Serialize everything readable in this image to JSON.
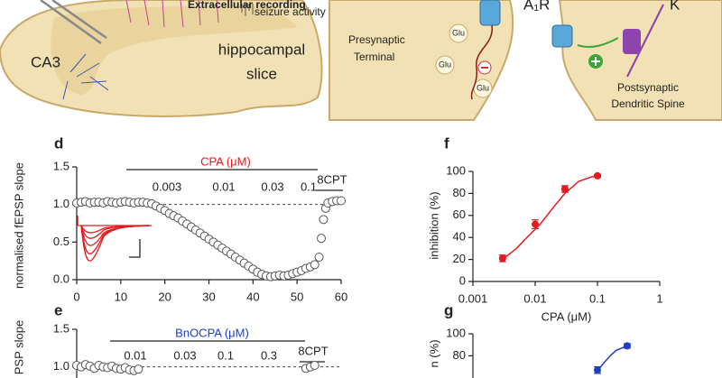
{
  "illustrations": {
    "left": {
      "region": "CA3",
      "slice": [
        "hippocampal",
        "slice"
      ],
      "recording": "Extracellular recording",
      "activity": "seizure activity"
    },
    "right": {
      "pre": [
        "Presynaptic",
        "Terminal"
      ],
      "post": [
        "Postsynaptic",
        "Dendritic Spine"
      ],
      "receptor": "A₁R",
      "ion": "K",
      "glu": [
        "Glu",
        "Glu",
        "Glu"
      ]
    }
  },
  "chart_data": [
    {
      "type": "scatter",
      "panel": "d",
      "ylabel": "normalised fEPSP slope",
      "color": "#e41a1c",
      "marker_color": "#555",
      "xlim": [
        0,
        60
      ],
      "xticks": [
        0,
        10,
        20,
        30,
        40,
        50,
        60
      ],
      "ylim": [
        0,
        1.5
      ],
      "yticks": [
        {
          "value": 0,
          "label": "0.0"
        },
        0.5,
        {
          "value": 1,
          "label": "1.0"
        },
        1.5
      ],
      "reference": 1,
      "annotation": {
        "label": "CPA (μM)",
        "doses": [
          "0.003",
          "0.01",
          "0.03",
          "0.1"
        ],
        "washout": "8CPT"
      },
      "x": [
        0,
        1,
        2,
        3,
        4,
        5,
        6,
        7,
        8,
        9,
        10,
        11,
        12,
        13,
        14,
        15,
        16,
        17,
        18,
        19,
        20,
        21,
        22,
        23,
        24,
        25,
        26,
        27,
        28,
        29,
        30,
        31,
        32,
        33,
        34,
        35,
        36,
        37,
        38,
        39,
        40,
        41,
        42,
        43,
        44,
        45,
        46,
        47,
        48,
        49,
        50,
        51,
        52,
        53,
        54,
        55,
        55.5,
        56,
        56.5,
        57,
        58,
        59,
        60
      ],
      "values": [
        1.02,
        1.03,
        1.04,
        1.02,
        1.03,
        1.03,
        1.02,
        1.04,
        1.03,
        1.02,
        1.03,
        1.04,
        1.03,
        1.02,
        1.03,
        1.03,
        1.02,
        1.01,
        0.98,
        0.95,
        0.92,
        0.88,
        0.85,
        0.82,
        0.78,
        0.74,
        0.7,
        0.66,
        0.62,
        0.58,
        0.54,
        0.5,
        0.46,
        0.42,
        0.38,
        0.34,
        0.3,
        0.26,
        0.22,
        0.18,
        0.14,
        0.1,
        0.07,
        0.05,
        0.04,
        0.05,
        0.06,
        0.05,
        0.06,
        0.08,
        0.1,
        0.12,
        0.15,
        0.17,
        0.2,
        0.3,
        0.55,
        0.8,
        0.95,
        1.02,
        1.04,
        1.05,
        1.05
      ]
    },
    {
      "type": "scatter",
      "panel": "e",
      "ylabel": "PSP slope",
      "color": "#1f3fbf",
      "marker_color": "#555",
      "xlim": [
        0,
        60
      ],
      "ylim": [
        0,
        1.5
      ],
      "yticks": [
        {
          "value": 1,
          "label": "1.0"
        },
        1.5
      ],
      "reference": 1,
      "annotation": {
        "label": "BnOCPA (μM)",
        "doses": [
          "0.01",
          "0.03",
          "0.1",
          "0.3"
        ],
        "washout": "8CPT"
      },
      "x": [
        0,
        1,
        2,
        3,
        4,
        5,
        6,
        7,
        8,
        9,
        10,
        11,
        12,
        13,
        14,
        52,
        53,
        54
      ],
      "values": [
        1.02,
        1.0,
        1.03,
        1.01,
        0.98,
        1.02,
        1.0,
        0.99,
        1.01,
        0.98,
        0.97,
        0.99,
        0.96,
        0.95,
        0.97,
        0.98,
        1.0,
        1.02
      ]
    },
    {
      "type": "scatter",
      "panel": "f",
      "ylabel": "inhibition (%)",
      "xlabel": "CPA (μM)",
      "color": "#e41a1c",
      "xlog": true,
      "xlim": [
        0.001,
        1
      ],
      "xticks": [
        0.001,
        0.01,
        0.1,
        1
      ],
      "ylim": [
        0,
        100
      ],
      "yticks": [
        0,
        20,
        40,
        60,
        80,
        100
      ],
      "x": [
        0.003,
        0.01,
        0.03,
        0.1
      ],
      "values": [
        21,
        52,
        84,
        96
      ],
      "errors": [
        3,
        4,
        3,
        1
      ],
      "fit": {
        "x": [
          0.003,
          0.005,
          0.008,
          0.012,
          0.02,
          0.03,
          0.05,
          0.08,
          0.1
        ],
        "values": [
          20,
          30,
          42,
          52,
          68,
          80,
          91,
          95,
          96
        ]
      }
    },
    {
      "type": "scatter",
      "panel": "g",
      "ylabel": "n (%)",
      "color": "#1f3fbf",
      "xlog": true,
      "xlim": [
        0.001,
        1
      ],
      "ylim": [
        0,
        100
      ],
      "yticks": [
        80,
        100
      ],
      "x": [
        0.1,
        0.3
      ],
      "values": [
        67,
        89
      ],
      "errors": [
        3,
        2
      ],
      "fit": {
        "x": [
          0.1,
          0.12,
          0.16,
          0.2,
          0.3
        ],
        "values": [
          66,
          72,
          80,
          85,
          89
        ]
      }
    }
  ]
}
